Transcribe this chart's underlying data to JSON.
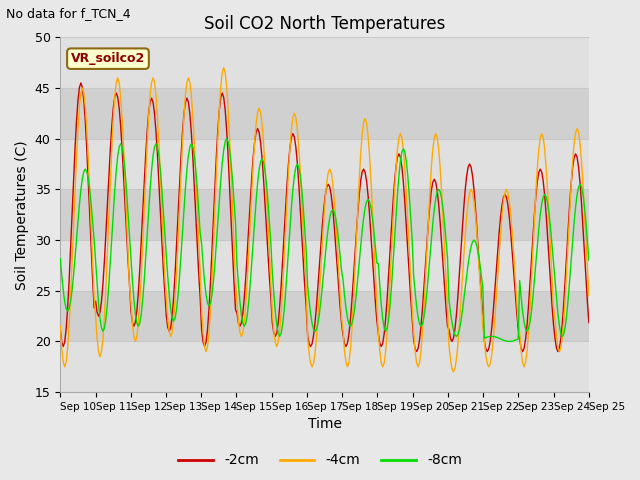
{
  "title": "Soil CO2 North Temperatures",
  "subtitle": "No data for f_TCN_4",
  "xlabel": "Time",
  "ylabel": "Soil Temperatures (C)",
  "ylim": [
    15,
    50
  ],
  "xlim": [
    0,
    15
  ],
  "xtick_labels": [
    "Sep 10",
    "Sep 11",
    "Sep 12",
    "Sep 13",
    "Sep 14",
    "Sep 15",
    "Sep 16",
    "Sep 17",
    "Sep 18",
    "Sep 19",
    "Sep 20",
    "Sep 21",
    "Sep 22",
    "Sep 23",
    "Sep 24",
    "Sep 25"
  ],
  "ytick_vals": [
    15,
    20,
    25,
    30,
    35,
    40,
    45,
    50
  ],
  "legend_label": "VR_soilco2",
  "line_labels": [
    "-2cm",
    "-4cm",
    "-8cm"
  ],
  "line_colors": [
    "#cc0000",
    "#ffaa00",
    "#00dd00"
  ],
  "bg_color": "#e8e8e8",
  "plot_bg_light": "#e0e0e0",
  "plot_bg_dark": "#d0d0d0",
  "grid_color": "#c8c8c8",
  "n_days": 15,
  "peak_2cm": [
    45.5,
    44.5,
    44.0,
    44.0,
    44.5,
    41.0,
    40.5,
    35.5,
    37.0,
    38.5,
    36.0,
    37.5,
    34.5,
    37.0,
    38.5
  ],
  "peak_4cm": [
    45.0,
    46.0,
    46.0,
    46.0,
    47.0,
    43.0,
    42.5,
    37.0,
    42.0,
    40.5,
    40.5,
    35.0,
    35.0,
    40.5,
    41.0
  ],
  "peak_8cm": [
    37.0,
    39.5,
    39.5,
    39.5,
    40.0,
    38.0,
    37.5,
    33.0,
    34.0,
    39.0,
    35.0,
    30.0,
    20.0,
    34.5,
    35.5
  ],
  "trough_2cm": [
    19.5,
    22.5,
    21.5,
    21.0,
    19.5,
    21.5,
    20.5,
    19.5,
    19.5,
    19.5,
    19.0,
    20.0,
    19.0,
    19.0,
    19.0
  ],
  "trough_4cm": [
    17.5,
    18.5,
    20.0,
    20.5,
    19.0,
    20.5,
    19.5,
    17.5,
    17.5,
    17.5,
    17.5,
    17.0,
    17.5,
    17.5,
    19.0
  ],
  "trough_8cm": [
    23.0,
    21.0,
    21.5,
    22.0,
    23.5,
    21.5,
    20.5,
    21.0,
    21.5,
    21.0,
    21.5,
    20.5,
    20.5,
    21.0,
    20.5
  ],
  "peak_hour_2cm": 14,
  "peak_hour_4cm": 15,
  "peak_hour_8cm": 17
}
